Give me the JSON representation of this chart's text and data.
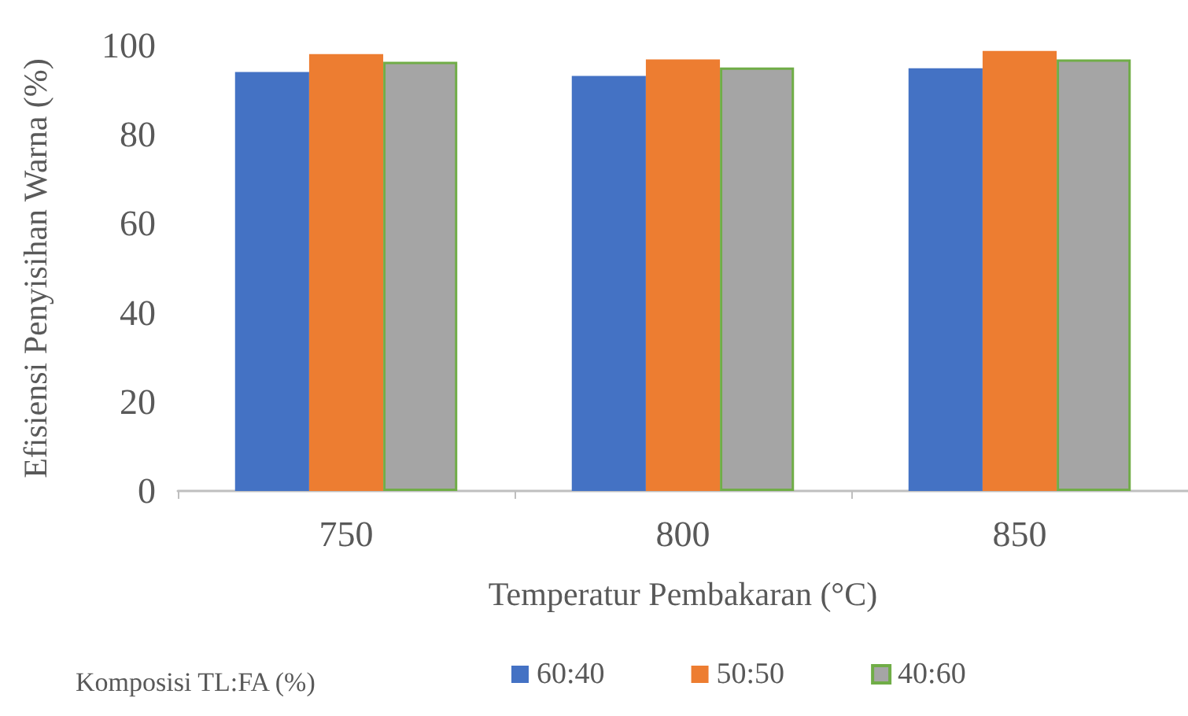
{
  "chart_data": {
    "type": "bar",
    "xlabel": "Temperatur Pembakaran (°C)",
    "ylabel": "Efisiensi Penyisihan Warna (%)",
    "legend_title": "Komposisi TL:FA (%)",
    "categories": [
      "750",
      "800",
      "850"
    ],
    "series": [
      {
        "name": "60:40",
        "color": "#4472c4",
        "values": [
          94.1,
          93.2,
          94.9
        ]
      },
      {
        "name": "50:50",
        "color": "#ed7d31",
        "values": [
          98.1,
          96.9,
          98.8
        ]
      },
      {
        "name": "40:60",
        "color": "#a5a5a5",
        "values": [
          96.4,
          95.1,
          96.9
        ]
      }
    ],
    "ylim": [
      0,
      100
    ],
    "yticks": [
      0,
      20,
      40,
      60,
      80,
      100
    ],
    "grid": false,
    "legend": "bottom"
  }
}
